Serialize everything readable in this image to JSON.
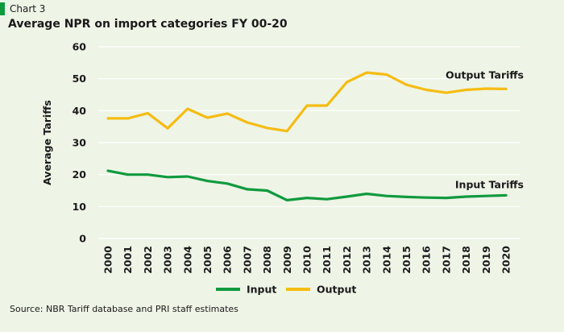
{
  "header": {
    "chart_label": "Chart 3",
    "title": "Average NPR on import categories FY 00-20"
  },
  "source": "Source: NBR Tariff database and PRI staff estimates",
  "colors": {
    "input": "#109a3e",
    "output": "#f5bc12",
    "grid": "#ffffff",
    "background": "#eef4e6"
  },
  "chart_data": {
    "type": "line",
    "title": "Average NPR on import categories FY 00-20",
    "xlabel": "",
    "ylabel": "Average Tariffs",
    "ylim": [
      0,
      60
    ],
    "yticks": [
      0,
      10,
      20,
      30,
      40,
      50,
      60
    ],
    "categories": [
      "2000",
      "2001",
      "2002",
      "2003",
      "2004",
      "2005",
      "2006",
      "2007",
      "2008",
      "2009",
      "2010",
      "2011",
      "2012",
      "2013",
      "2014",
      "2015",
      "2016",
      "2017",
      "2018",
      "2019",
      "2020"
    ],
    "series": [
      {
        "name": "Input",
        "annotation": "Input Tariffs",
        "color": "#109a3e",
        "values": [
          21.2,
          20.0,
          20.0,
          19.2,
          19.4,
          18.0,
          17.2,
          15.4,
          15.0,
          12.0,
          12.7,
          12.3,
          13.1,
          14.0,
          13.3,
          13.0,
          12.8,
          12.7,
          13.1,
          13.3,
          13.5
        ]
      },
      {
        "name": "Output",
        "annotation": "Output Tariffs",
        "color": "#f5bc12",
        "values": [
          37.6,
          37.6,
          39.2,
          34.5,
          40.6,
          37.8,
          39.1,
          36.3,
          34.6,
          33.6,
          41.6,
          41.6,
          48.9,
          51.9,
          51.3,
          48.1,
          46.5,
          45.6,
          46.5,
          46.9,
          46.8
        ]
      }
    ],
    "grid": true,
    "legend": "bottom-center"
  }
}
